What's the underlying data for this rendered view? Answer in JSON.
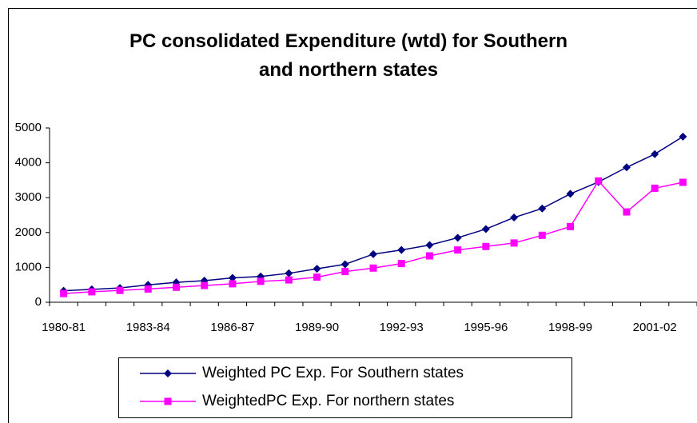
{
  "chart_data": {
    "type": "line",
    "title": "PC consolidated Expenditure (wtd) for Southern and northern states",
    "categories": [
      "1980-81",
      null,
      null,
      "1983-84",
      null,
      null,
      "1986-87",
      null,
      null,
      "1989-90",
      null,
      null,
      "1992-93",
      null,
      null,
      "1995-96",
      null,
      null,
      "1998-99",
      null,
      null,
      "2001-02",
      null
    ],
    "series": [
      {
        "name": "Weighted PC Exp. For Southern states",
        "color": "#000080",
        "marker": "diamond",
        "values": [
          330,
          370,
          410,
          500,
          570,
          620,
          700,
          740,
          830,
          960,
          1090,
          1380,
          1500,
          1640,
          1850,
          2100,
          2430,
          2690,
          3110,
          3450,
          3870,
          4250,
          4750
        ]
      },
      {
        "name": "WeightedPC Exp. For northern states",
        "color": "#ff00ff",
        "marker": "square",
        "values": [
          250,
          300,
          340,
          380,
          430,
          480,
          530,
          600,
          640,
          720,
          880,
          980,
          1110,
          1330,
          1500,
          1600,
          1700,
          1920,
          2170,
          3480,
          2590,
          3270,
          3440
        ]
      }
    ],
    "ylim": [
      0,
      5000
    ],
    "yticks": [
      0,
      1000,
      2000,
      3000,
      4000,
      5000
    ],
    "grid": false,
    "legend": "bottom"
  }
}
